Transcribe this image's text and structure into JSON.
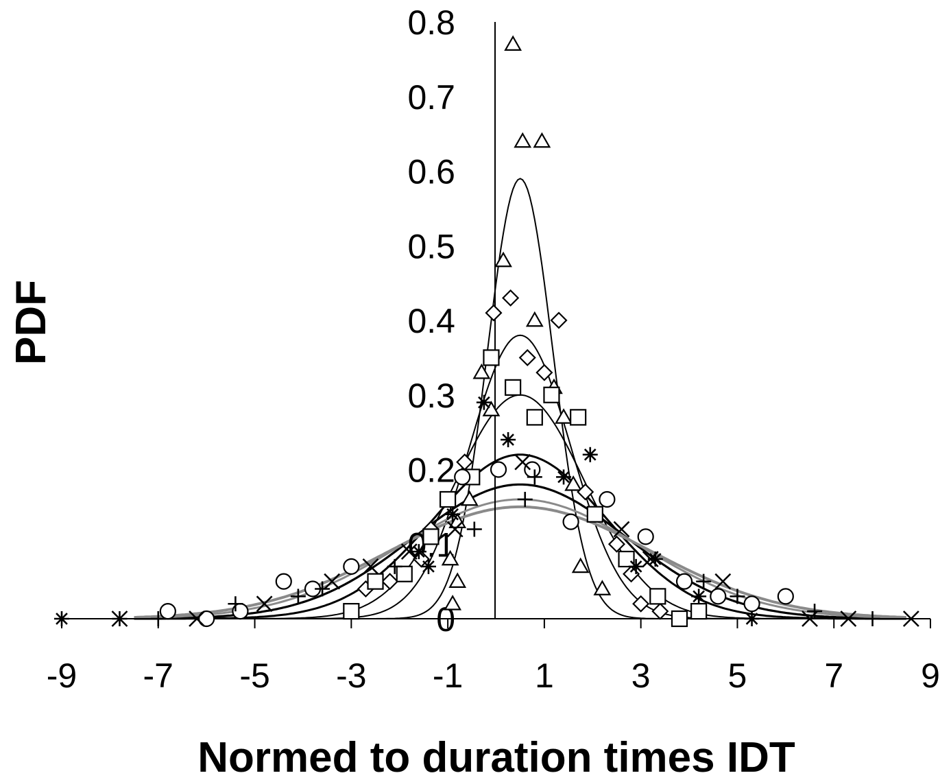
{
  "chart_data": {
    "type": "scatter",
    "title": "",
    "xlabel": "Normed to duration times IDT",
    "ylabel": "PDF",
    "xlim": [
      -9,
      9
    ],
    "ylim": [
      0,
      0.8
    ],
    "x_ticks": [
      -9,
      -7,
      -5,
      -3,
      -1,
      1,
      3,
      5,
      7,
      9
    ],
    "y_ticks": [
      0,
      0.1,
      0.2,
      0.3,
      0.4,
      0.5,
      0.6,
      0.7,
      0.8
    ],
    "x_tick_labels": [
      "-9",
      "-7",
      "-5",
      "-3",
      "-1",
      "1",
      "3",
      "5",
      "7",
      "9"
    ],
    "y_tick_labels": [
      "0",
      "0.1",
      "0.2",
      "0.3",
      "0.4",
      "0.5",
      "0.6",
      "0.7",
      "0.8"
    ],
    "grid": false,
    "legend": "none",
    "series": [
      {
        "marker": "triangle",
        "points": [
          [
            0.35,
            0.77
          ],
          [
            0.55,
            0.64
          ],
          [
            0.95,
            0.64
          ],
          [
            0.15,
            0.48
          ],
          [
            0.8,
            0.4
          ],
          [
            1.2,
            0.31
          ],
          [
            -0.3,
            0.33
          ],
          [
            -0.1,
            0.28
          ],
          [
            1.4,
            0.27
          ],
          [
            1.6,
            0.18
          ],
          [
            -0.55,
            0.16
          ],
          [
            -0.8,
            0.13
          ],
          [
            -0.95,
            0.08
          ],
          [
            -0.8,
            0.05
          ],
          [
            -0.9,
            0.02
          ],
          [
            1.75,
            0.07
          ],
          [
            2.2,
            0.04
          ]
        ],
        "fit": {
          "mean": 0.5,
          "peak": 0.59,
          "sigma": 0.68
        }
      },
      {
        "marker": "diamond",
        "points": [
          [
            -0.05,
            0.41
          ],
          [
            0.3,
            0.43
          ],
          [
            1.3,
            0.4
          ],
          [
            0.65,
            0.35
          ],
          [
            1.0,
            0.33
          ],
          [
            -0.65,
            0.21
          ],
          [
            1.85,
            0.17
          ],
          [
            -1.35,
            0.12
          ],
          [
            -1.55,
            0.08
          ],
          [
            -2.2,
            0.05
          ],
          [
            -2.7,
            0.04
          ],
          [
            2.5,
            0.1
          ],
          [
            2.8,
            0.06
          ],
          [
            3.0,
            0.02
          ],
          [
            3.4,
            0.01
          ]
        ],
        "fit": {
          "mean": 0.5,
          "peak": 0.38,
          "sigma": 1.05
        }
      },
      {
        "marker": "square",
        "points": [
          [
            -0.1,
            0.35
          ],
          [
            0.35,
            0.31
          ],
          [
            1.15,
            0.3
          ],
          [
            0.8,
            0.27
          ],
          [
            1.7,
            0.27
          ],
          [
            -0.5,
            0.19
          ],
          [
            -1.0,
            0.16
          ],
          [
            2.05,
            0.14
          ],
          [
            -1.35,
            0.11
          ],
          [
            -1.9,
            0.06
          ],
          [
            -2.5,
            0.05
          ],
          [
            -3.0,
            0.01
          ],
          [
            2.7,
            0.08
          ],
          [
            3.35,
            0.03
          ],
          [
            3.8,
            0.0
          ],
          [
            4.2,
            0.01
          ]
        ],
        "fit": {
          "mean": 0.5,
          "peak": 0.3,
          "sigma": 1.35
        }
      },
      {
        "marker": "asterisk",
        "points": [
          [
            0.25,
            0.24
          ],
          [
            1.95,
            0.22
          ],
          [
            1.4,
            0.19
          ],
          [
            -0.25,
            0.29
          ],
          [
            -0.9,
            0.14
          ],
          [
            -1.4,
            0.07
          ],
          [
            -1.6,
            0.09
          ],
          [
            2.9,
            0.07
          ],
          [
            3.3,
            0.08
          ],
          [
            4.2,
            0.03
          ],
          [
            5.3,
            0.0
          ],
          [
            -9.0,
            0.0
          ]
        ],
        "fit": {
          "mean": 0.5,
          "peak": 0.22,
          "sigma": 1.8
        }
      },
      {
        "marker": "circle",
        "points": [
          [
            0.05,
            0.2
          ],
          [
            0.75,
            0.2
          ],
          [
            -0.7,
            0.19
          ],
          [
            2.3,
            0.16
          ],
          [
            1.55,
            0.13
          ],
          [
            3.1,
            0.11
          ],
          [
            -3.0,
            0.07
          ],
          [
            -4.4,
            0.05
          ],
          [
            3.9,
            0.05
          ],
          [
            4.6,
            0.03
          ],
          [
            5.3,
            0.02
          ],
          [
            6.0,
            0.03
          ],
          [
            -6.8,
            0.01
          ],
          [
            -6.0,
            0.0
          ],
          [
            -5.3,
            0.01
          ],
          [
            -3.8,
            0.04
          ]
        ],
        "fit": {
          "mean": 0.5,
          "peak": 0.18,
          "sigma": 2.2
        }
      },
      {
        "marker": "cross",
        "points": [
          [
            0.55,
            0.21
          ],
          [
            -0.85,
            0.12
          ],
          [
            -1.8,
            0.09
          ],
          [
            -2.6,
            0.07
          ],
          [
            -3.4,
            0.05
          ],
          [
            -4.8,
            0.02
          ],
          [
            3.2,
            0.08
          ],
          [
            4.7,
            0.05
          ],
          [
            6.5,
            0.0
          ],
          [
            7.3,
            0.0
          ],
          [
            8.6,
            0.0
          ],
          [
            -7.8,
            0.0
          ],
          [
            -6.2,
            0.0
          ],
          [
            2.6,
            0.12
          ]
        ],
        "fit": {
          "mean": 0.5,
          "peak": 0.16,
          "sigma": 2.5
        }
      },
      {
        "marker": "plus",
        "points": [
          [
            0.8,
            0.19
          ],
          [
            0.6,
            0.16
          ],
          [
            -0.45,
            0.12
          ],
          [
            -2.1,
            0.07
          ],
          [
            -3.6,
            0.04
          ],
          [
            -4.1,
            0.03
          ],
          [
            -5.4,
            0.02
          ],
          [
            4.3,
            0.05
          ],
          [
            6.6,
            0.01
          ],
          [
            7.8,
            0.0
          ],
          [
            -7.0,
            0.0
          ],
          [
            -7.8,
            0.0
          ],
          [
            5.0,
            0.03
          ]
        ],
        "fit": {
          "mean": 0.5,
          "peak": 0.15,
          "sigma": 2.7
        }
      }
    ],
    "colors": {
      "axes": "#000000",
      "markers": "#000000",
      "fit_dark": "#000000",
      "fit_gray": "#8a8a8a"
    }
  }
}
